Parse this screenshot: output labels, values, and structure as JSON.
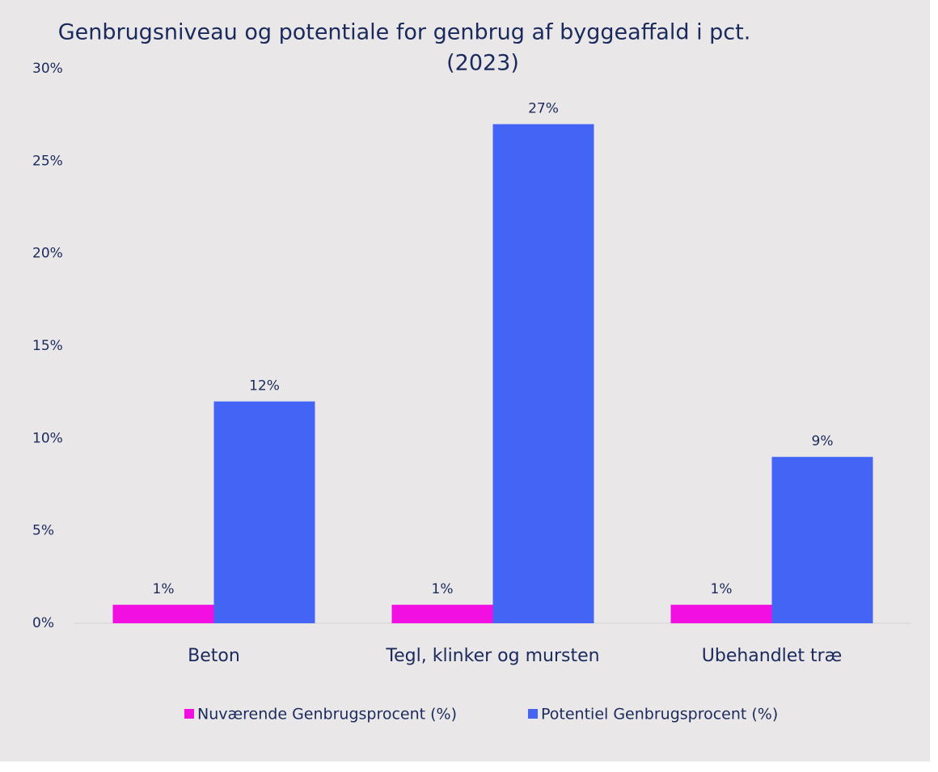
{
  "chart_data": {
    "type": "bar",
    "title": [
      "Genbrugsniveau og potentiale for genbrug af byggeaffald i pct.",
      "(2023)"
    ],
    "categories": [
      "Beton",
      "Tegl, klinker og mursten",
      "Ubehandlet træ"
    ],
    "series": [
      {
        "name": "Nuværende Genbrugsprocent (%)",
        "color": "#f20fe2",
        "values": [
          1,
          1,
          1
        ],
        "value_labels": [
          "1%",
          "1%",
          "1%"
        ]
      },
      {
        "name": "Potentiel Genbrugsprocent (%)",
        "color": "#4464f6",
        "values": [
          12,
          27,
          9
        ],
        "value_labels": [
          "12%",
          "27%",
          "9%"
        ]
      }
    ],
    "ylim": [
      0,
      30
    ],
    "yticks": [
      {
        "value": 0,
        "label": "0%"
      },
      {
        "value": 5,
        "label": "5%"
      },
      {
        "value": 10,
        "label": "10%"
      },
      {
        "value": 15,
        "label": "15%"
      },
      {
        "value": 20,
        "label": "20%"
      },
      {
        "value": 25,
        "label": "25%"
      },
      {
        "value": 30,
        "label": "30%"
      }
    ],
    "grid": false,
    "legend": "bottom"
  }
}
